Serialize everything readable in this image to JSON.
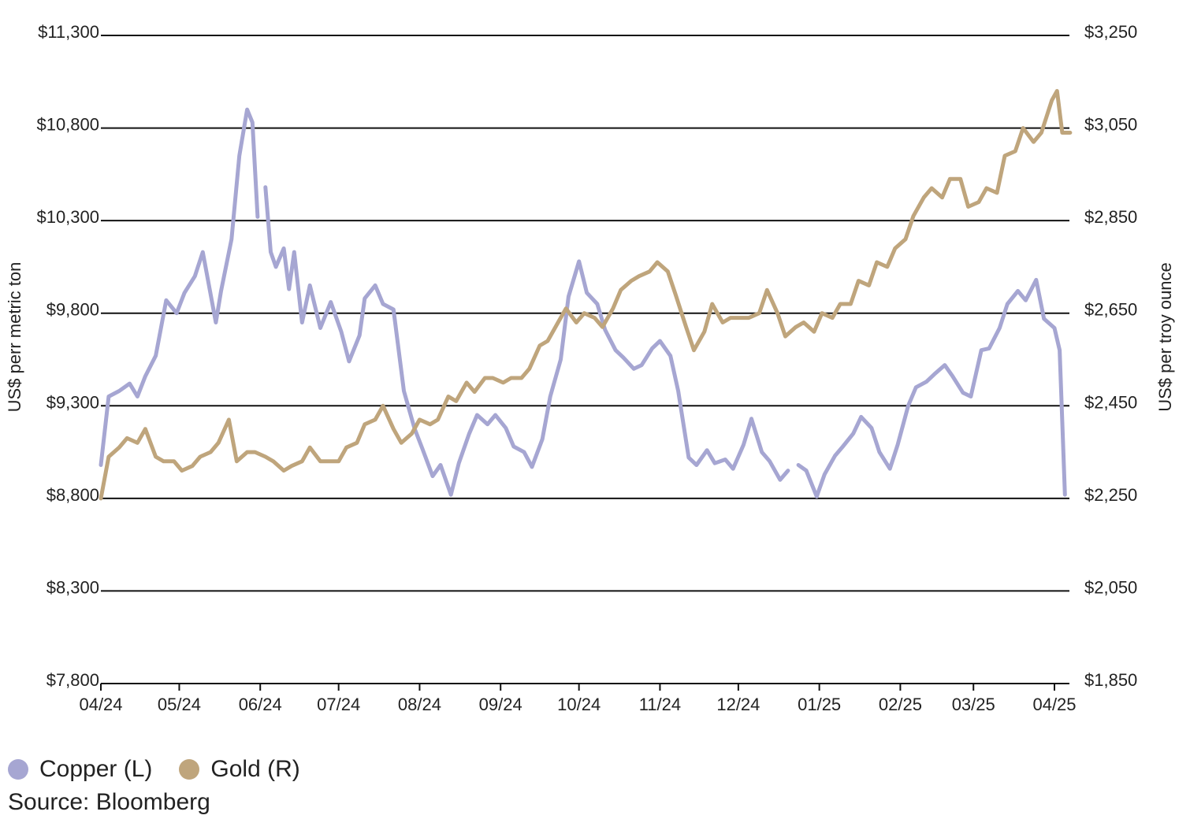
{
  "chart_data": {
    "type": "line",
    "title": "",
    "xlabel": "",
    "ylabel_left": "US$ perr metric ton",
    "ylabel_right": "US$ per troy ounce",
    "x_ticks": [
      "04/24",
      "05/24",
      "06/24",
      "07/24",
      "08/24",
      "09/24",
      "10/24",
      "11/24",
      "12/24",
      "01/25",
      "02/25",
      "03/25",
      "04/25"
    ],
    "y_left_ticks": [
      "$11,300",
      "$10,800",
      "$10,300",
      "$9,800",
      "$9,300",
      "$8,800",
      "$8,300",
      "$7,800"
    ],
    "y_right_ticks": [
      "$3,250",
      "$3,050",
      "$2,850",
      "$2,650",
      "$2,450",
      "$2,250",
      "$2,050",
      "$1,850"
    ],
    "ylim_left": [
      7800,
      11300
    ],
    "ylim_right": [
      1850,
      3250
    ],
    "grid": "horizontal",
    "legend_position": "bottom-left",
    "series": [
      {
        "name": "Copper (L)",
        "axis": "left",
        "color": "#a6a6d2",
        "segments": [
          [
            [
              "2024-04-01",
              8980
            ],
            [
              "2024-04-04",
              9350
            ],
            [
              "2024-04-08",
              9380
            ],
            [
              "2024-04-12",
              9420
            ],
            [
              "2024-04-15",
              9350
            ],
            [
              "2024-04-18",
              9460
            ],
            [
              "2024-04-22",
              9570
            ],
            [
              "2024-04-26",
              9870
            ],
            [
              "2024-04-30",
              9800
            ],
            [
              "2024-05-03",
              9910
            ],
            [
              "2024-05-07",
              10000
            ],
            [
              "2024-05-10",
              10130
            ],
            [
              "2024-05-15",
              9750
            ],
            [
              "2024-05-17",
              9920
            ],
            [
              "2024-05-21",
              10200
            ],
            [
              "2024-05-24",
              10650
            ],
            [
              "2024-05-27",
              10900
            ],
            [
              "2024-05-29",
              10830
            ],
            [
              "2024-05-31",
              10320
            ]
          ],
          [
            [
              "2024-06-03",
              10480
            ],
            [
              "2024-06-05",
              10130
            ],
            [
              "2024-06-07",
              10050
            ],
            [
              "2024-06-10",
              10150
            ],
            [
              "2024-06-12",
              9930
            ],
            [
              "2024-06-14",
              10130
            ],
            [
              "2024-06-17",
              9750
            ],
            [
              "2024-06-20",
              9950
            ],
            [
              "2024-06-24",
              9720
            ],
            [
              "2024-06-28",
              9860
            ],
            [
              "2024-07-02",
              9700
            ],
            [
              "2024-07-05",
              9540
            ],
            [
              "2024-07-09",
              9680
            ],
            [
              "2024-07-11",
              9880
            ],
            [
              "2024-07-15",
              9950
            ],
            [
              "2024-07-18",
              9850
            ],
            [
              "2024-07-22",
              9820
            ],
            [
              "2024-07-26",
              9380
            ],
            [
              "2024-07-30",
              9180
            ],
            [
              "2024-08-02",
              9070
            ],
            [
              "2024-08-06",
              8920
            ],
            [
              "2024-08-09",
              8980
            ],
            [
              "2024-08-13",
              8820
            ],
            [
              "2024-08-16",
              8990
            ],
            [
              "2024-08-20",
              9150
            ],
            [
              "2024-08-23",
              9250
            ],
            [
              "2024-08-27",
              9200
            ],
            [
              "2024-08-30",
              9250
            ],
            [
              "2024-09-03",
              9180
            ],
            [
              "2024-09-06",
              9080
            ],
            [
              "2024-09-10",
              9050
            ],
            [
              "2024-09-13",
              8970
            ],
            [
              "2024-09-17",
              9120
            ],
            [
              "2024-09-20",
              9350
            ],
            [
              "2024-09-24",
              9550
            ],
            [
              "2024-09-27",
              9890
            ],
            [
              "2024-10-01",
              10080
            ],
            [
              "2024-10-04",
              9910
            ],
            [
              "2024-10-08",
              9850
            ],
            [
              "2024-10-11",
              9710
            ],
            [
              "2024-10-15",
              9600
            ],
            [
              "2024-10-18",
              9560
            ],
            [
              "2024-10-22",
              9500
            ],
            [
              "2024-10-25",
              9520
            ],
            [
              "2024-10-29",
              9610
            ],
            [
              "2024-11-01",
              9650
            ],
            [
              "2024-11-05",
              9570
            ],
            [
              "2024-11-08",
              9380
            ],
            [
              "2024-11-12",
              9020
            ],
            [
              "2024-11-15",
              8980
            ],
            [
              "2024-11-19",
              9060
            ],
            [
              "2024-11-22",
              8990
            ],
            [
              "2024-11-26",
              9010
            ],
            [
              "2024-11-29",
              8960
            ],
            [
              "2024-12-03",
              9090
            ],
            [
              "2024-12-06",
              9230
            ],
            [
              "2024-12-10",
              9050
            ],
            [
              "2024-12-13",
              9000
            ],
            [
              "2024-12-17",
              8900
            ],
            [
              "2024-12-20",
              8950
            ]
          ],
          [
            [
              "2024-12-24",
              8980
            ],
            [
              "2024-12-27",
              8950
            ],
            [
              "2024-12-31",
              8810
            ],
            [
              "2025-01-03",
              8930
            ],
            [
              "2025-01-07",
              9030
            ],
            [
              "2025-01-10",
              9080
            ],
            [
              "2025-01-14",
              9150
            ],
            [
              "2025-01-17",
              9240
            ],
            [
              "2025-01-21",
              9180
            ],
            [
              "2025-01-24",
              9050
            ],
            [
              "2025-01-28",
              8960
            ],
            [
              "2025-01-31",
              9090
            ],
            [
              "2025-02-04",
              9300
            ],
            [
              "2025-02-07",
              9400
            ],
            [
              "2025-02-11",
              9430
            ],
            [
              "2025-02-14",
              9470
            ],
            [
              "2025-02-18",
              9520
            ],
            [
              "2025-02-21",
              9460
            ],
            [
              "2025-02-25",
              9370
            ],
            [
              "2025-02-28",
              9350
            ],
            [
              "2025-03-04",
              9600
            ],
            [
              "2025-03-07",
              9610
            ],
            [
              "2025-03-11",
              9720
            ],
            [
              "2025-03-14",
              9850
            ],
            [
              "2025-03-18",
              9920
            ],
            [
              "2025-03-21",
              9870
            ],
            [
              "2025-03-25",
              9980
            ],
            [
              "2025-03-28",
              9770
            ],
            [
              "2025-04-01",
              9720
            ],
            [
              "2025-04-03",
              9600
            ],
            [
              "2025-04-05",
              8820
            ]
          ]
        ]
      },
      {
        "name": "Gold (R)",
        "axis": "right",
        "color": "#bfa57c",
        "segments": [
          [
            [
              "2024-04-01",
              2250
            ],
            [
              "2024-04-04",
              2340
            ],
            [
              "2024-04-08",
              2360
            ],
            [
              "2024-04-11",
              2380
            ],
            [
              "2024-04-15",
              2370
            ],
            [
              "2024-04-18",
              2400
            ],
            [
              "2024-04-22",
              2340
            ],
            [
              "2024-04-25",
              2330
            ],
            [
              "2024-04-29",
              2330
            ],
            [
              "2024-05-02",
              2310
            ],
            [
              "2024-05-06",
              2320
            ],
            [
              "2024-05-09",
              2340
            ],
            [
              "2024-05-13",
              2350
            ],
            [
              "2024-05-16",
              2370
            ],
            [
              "2024-05-20",
              2420
            ],
            [
              "2024-05-23",
              2330
            ],
            [
              "2024-05-27",
              2350
            ],
            [
              "2024-05-30",
              2350
            ],
            [
              "2024-06-03",
              2340
            ],
            [
              "2024-06-06",
              2330
            ],
            [
              "2024-06-10",
              2310
            ],
            [
              "2024-06-13",
              2320
            ],
            [
              "2024-06-17",
              2330
            ],
            [
              "2024-06-20",
              2360
            ],
            [
              "2024-06-24",
              2330
            ],
            [
              "2024-06-27",
              2330
            ],
            [
              "2024-07-01",
              2330
            ],
            [
              "2024-07-04",
              2360
            ],
            [
              "2024-07-08",
              2370
            ],
            [
              "2024-07-11",
              2410
            ],
            [
              "2024-07-15",
              2420
            ],
            [
              "2024-07-18",
              2450
            ],
            [
              "2024-07-22",
              2400
            ],
            [
              "2024-07-25",
              2370
            ],
            [
              "2024-07-29",
              2390
            ],
            [
              "2024-08-01",
              2420
            ],
            [
              "2024-08-05",
              2410
            ],
            [
              "2024-08-08",
              2420
            ],
            [
              "2024-08-12",
              2470
            ],
            [
              "2024-08-15",
              2460
            ],
            [
              "2024-08-19",
              2500
            ],
            [
              "2024-08-22",
              2480
            ],
            [
              "2024-08-26",
              2510
            ],
            [
              "2024-08-29",
              2510
            ],
            [
              "2024-09-02",
              2500
            ],
            [
              "2024-09-05",
              2510
            ],
            [
              "2024-09-09",
              2510
            ],
            [
              "2024-09-12",
              2530
            ],
            [
              "2024-09-16",
              2580
            ],
            [
              "2024-09-19",
              2590
            ],
            [
              "2024-09-23",
              2630
            ],
            [
              "2024-09-26",
              2660
            ],
            [
              "2024-09-30",
              2630
            ],
            [
              "2024-10-03",
              2650
            ],
            [
              "2024-10-07",
              2640
            ],
            [
              "2024-10-10",
              2620
            ],
            [
              "2024-10-14",
              2660
            ],
            [
              "2024-10-17",
              2700
            ],
            [
              "2024-10-21",
              2720
            ],
            [
              "2024-10-24",
              2730
            ],
            [
              "2024-10-28",
              2740
            ],
            [
              "2024-10-31",
              2760
            ],
            [
              "2024-11-04",
              2740
            ],
            [
              "2024-11-07",
              2690
            ],
            [
              "2024-11-11",
              2620
            ],
            [
              "2024-11-14",
              2570
            ],
            [
              "2024-11-18",
              2610
            ],
            [
              "2024-11-21",
              2670
            ],
            [
              "2024-11-25",
              2630
            ],
            [
              "2024-11-28",
              2640
            ],
            [
              "2024-12-02",
              2640
            ],
            [
              "2024-12-05",
              2640
            ],
            [
              "2024-12-09",
              2650
            ],
            [
              "2024-12-12",
              2700
            ],
            [
              "2024-12-16",
              2650
            ],
            [
              "2024-12-19",
              2600
            ],
            [
              "2024-12-23",
              2620
            ],
            [
              "2024-12-26",
              2630
            ],
            [
              "2024-12-30",
              2610
            ],
            [
              "2025-01-02",
              2650
            ],
            [
              "2025-01-06",
              2640
            ],
            [
              "2025-01-09",
              2670
            ],
            [
              "2025-01-13",
              2670
            ],
            [
              "2025-01-16",
              2720
            ],
            [
              "2025-01-20",
              2710
            ],
            [
              "2025-01-23",
              2760
            ],
            [
              "2025-01-27",
              2750
            ],
            [
              "2025-01-30",
              2790
            ],
            [
              "2025-02-03",
              2810
            ],
            [
              "2025-02-06",
              2860
            ],
            [
              "2025-02-10",
              2900
            ],
            [
              "2025-02-13",
              2920
            ],
            [
              "2025-02-17",
              2900
            ],
            [
              "2025-02-20",
              2940
            ],
            [
              "2025-02-24",
              2940
            ],
            [
              "2025-02-27",
              2880
            ],
            [
              "2025-03-03",
              2890
            ],
            [
              "2025-03-06",
              2920
            ],
            [
              "2025-03-10",
              2910
            ],
            [
              "2025-03-13",
              2990
            ],
            [
              "2025-03-17",
              3000
            ],
            [
              "2025-03-20",
              3050
            ],
            [
              "2025-03-24",
              3020
            ],
            [
              "2025-03-27",
              3040
            ],
            [
              "2025-03-31",
              3110
            ],
            [
              "2025-04-02",
              3130
            ],
            [
              "2025-04-04",
              3040
            ],
            [
              "2025-04-07",
              3040
            ]
          ]
        ]
      }
    ]
  },
  "legend": {
    "items": [
      {
        "label": "Copper (L)",
        "color": "#a6a6d2"
      },
      {
        "label": "Gold (R)",
        "color": "#bfa57c"
      }
    ]
  },
  "source": "Source: Bloomberg"
}
